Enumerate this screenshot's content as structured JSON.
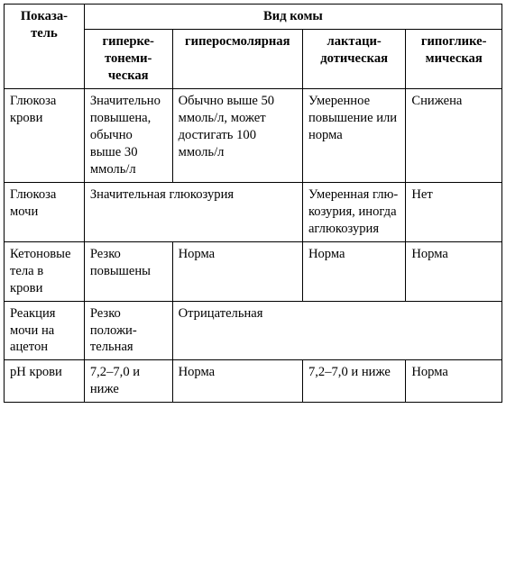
{
  "table": {
    "corner": "Показа­тель",
    "group_header": "Вид комы",
    "col_headers": {
      "a": "гиперке­тонеми­ческая",
      "b": "гиперосмо­лярная",
      "c": "лактаци­дотиче­ская",
      "d": "гипоглике­мическая"
    },
    "rows": [
      {
        "indicator": "Глюкоза крови",
        "cells": {
          "a": "Значи­тельно повы­шена, обычно выше 30 ммоль/л",
          "b": "Обычно выше 50 ммоль/л, может достигать 100 ммоль/л",
          "c": "Умеренное повыше­ние или норма",
          "d": "Снижена"
        },
        "span_ab": false
      },
      {
        "indicator": "Глюкоза мочи",
        "cells": {
          "ab": "Значительная глюкозу­рия",
          "c": "Умерен­ная глю­козурия, иногда аглюкозу­рия",
          "d": "Нет"
        },
        "span_ab": true
      },
      {
        "indicator": "Кетоно­вые тела в крови",
        "cells": {
          "a": "Резко повыше­ны",
          "b": "Норма",
          "c": "Норма",
          "d": "Норма"
        },
        "span_ab": false
      },
      {
        "indicator": "Реакция мочи на ацетон",
        "cells": {
          "a": "Резко положи­тельная",
          "bcd": "Отрицательная"
        },
        "span_bcd": true
      },
      {
        "indicator": "pH крови",
        "cells": {
          "a": "7,2–7,0 и ниже",
          "b": "Норма",
          "c": "7,2–7,0 и ниже",
          "d": "Норма"
        },
        "span_ab": false
      }
    ]
  }
}
